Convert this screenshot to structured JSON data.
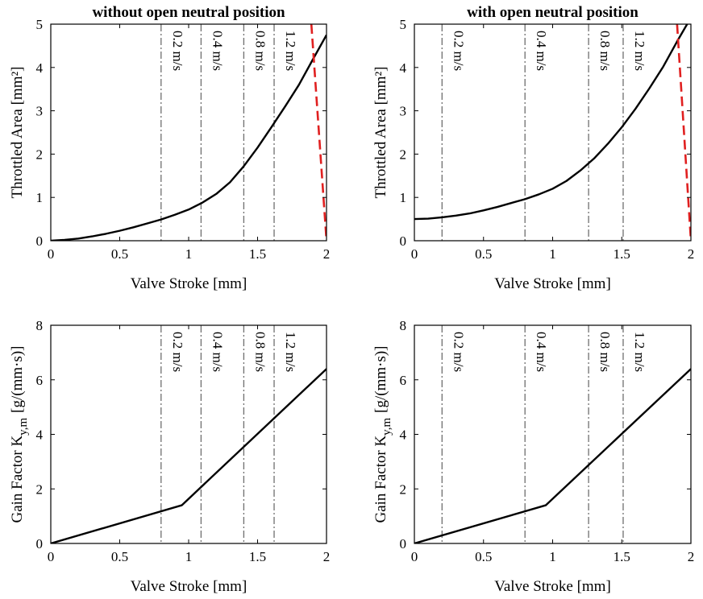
{
  "figure": {
    "colors": {
      "curve": "#000000",
      "refline": "#6e6e6e",
      "redline": "#e02020"
    }
  },
  "chart_data": [
    {
      "type": "line",
      "title": "without open neutral position",
      "xlabel": "Valve Stroke  [mm]",
      "ylabel": "Throttled Area [mm²]",
      "xlim": [
        0,
        2
      ],
      "ylim": [
        0,
        5
      ],
      "xticks": [
        0,
        0.5,
        1,
        1.5,
        2
      ],
      "xtick_labels": [
        "0",
        "0.5",
        "1",
        "1.5",
        "2"
      ],
      "yticks": [
        0,
        1,
        2,
        3,
        4,
        5
      ],
      "ytick_labels": [
        "0",
        "1",
        "2",
        "3",
        "4",
        "5"
      ],
      "series": [
        {
          "name": "Throttled area",
          "style": "solid-black",
          "x": [
            0,
            0.1,
            0.2,
            0.3,
            0.4,
            0.5,
            0.6,
            0.7,
            0.8,
            0.9,
            1.0,
            1.1,
            1.2,
            1.3,
            1.4,
            1.5,
            1.6,
            1.7,
            1.8,
            1.9,
            2.0
          ],
          "y": [
            0,
            0.02,
            0.05,
            0.1,
            0.16,
            0.23,
            0.31,
            0.4,
            0.49,
            0.6,
            0.72,
            0.88,
            1.08,
            1.35,
            1.72,
            2.15,
            2.62,
            3.1,
            3.6,
            4.18,
            4.75
          ]
        },
        {
          "name": "Dashed red line",
          "style": "dashed-red",
          "x": [
            1.89,
            2.0
          ],
          "y": [
            5.0,
            0.0
          ]
        }
      ],
      "vlines": [
        {
          "x": 0.8,
          "label": "0.2 m/s"
        },
        {
          "x": 1.09,
          "label": "0.4 m/s"
        },
        {
          "x": 1.4,
          "label": "0.8 m/s"
        },
        {
          "x": 1.62,
          "label": "1.2 m/s"
        }
      ]
    },
    {
      "type": "line",
      "title": "with open neutral position",
      "xlabel": "Valve Stroke  [mm]",
      "ylabel": "Throttled Area [mm²]",
      "xlim": [
        0,
        2
      ],
      "ylim": [
        0,
        5
      ],
      "xticks": [
        0,
        0.5,
        1,
        1.5,
        2
      ],
      "xtick_labels": [
        "0",
        "0.5",
        "1",
        "1.5",
        "2"
      ],
      "yticks": [
        0,
        1,
        2,
        3,
        4,
        5
      ],
      "ytick_labels": [
        "0",
        "1",
        "2",
        "3",
        "4",
        "5"
      ],
      "series": [
        {
          "name": "Throttled area",
          "style": "solid-black",
          "x": [
            0,
            0.1,
            0.2,
            0.3,
            0.4,
            0.5,
            0.6,
            0.7,
            0.8,
            0.9,
            1.0,
            1.1,
            1.2,
            1.3,
            1.4,
            1.5,
            1.6,
            1.7,
            1.8,
            1.9,
            2.0
          ],
          "y": [
            0.5,
            0.51,
            0.54,
            0.58,
            0.63,
            0.7,
            0.78,
            0.87,
            0.96,
            1.07,
            1.2,
            1.38,
            1.62,
            1.9,
            2.24,
            2.62,
            3.05,
            3.52,
            4.02,
            4.6,
            5.15
          ]
        },
        {
          "name": "Dashed red line",
          "style": "dashed-red",
          "x": [
            1.9,
            2.0
          ],
          "y": [
            5.0,
            0.0
          ]
        }
      ],
      "vlines": [
        {
          "x": 0.2,
          "label": "0.2 m/s"
        },
        {
          "x": 0.8,
          "label": "0.4 m/s"
        },
        {
          "x": 1.26,
          "label": "0.8 m/s"
        },
        {
          "x": 1.51,
          "label": "1.2 m/s"
        }
      ]
    },
    {
      "type": "line",
      "title": "",
      "xlabel": "Valve Stroke [mm]",
      "ylabel": "Gain Factor K",
      "ylabel_sub": "y,m",
      "ylabel_unit": "[g/(mm·s)]",
      "xlim": [
        0,
        2
      ],
      "ylim": [
        0,
        8
      ],
      "xticks": [
        0,
        0.5,
        1,
        1.5,
        2
      ],
      "xtick_labels": [
        "0",
        "0.5",
        "1",
        "1.5",
        "2"
      ],
      "yticks": [
        0,
        2,
        4,
        6,
        8
      ],
      "ytick_labels": [
        "0",
        "2",
        "4",
        "6",
        "8"
      ],
      "series": [
        {
          "name": "Gain factor",
          "style": "solid-black",
          "x": [
            0,
            0.95,
            2.0
          ],
          "y": [
            0,
            1.4,
            6.4
          ]
        }
      ],
      "vlines": [
        {
          "x": 0.8,
          "label": "0.2 m/s"
        },
        {
          "x": 1.09,
          "label": "0.4 m/s"
        },
        {
          "x": 1.4,
          "label": "0.8 m/s"
        },
        {
          "x": 1.62,
          "label": "1.2 m/s"
        }
      ]
    },
    {
      "type": "line",
      "title": "",
      "xlabel": "Valve Stroke [mm]",
      "ylabel": "Gain Factor K",
      "ylabel_sub": "y,m",
      "ylabel_unit": "[g/(mm·s)]",
      "xlim": [
        0,
        2
      ],
      "ylim": [
        0,
        8
      ],
      "xticks": [
        0,
        0.5,
        1,
        1.5,
        2
      ],
      "xtick_labels": [
        "0",
        "0.5",
        "1",
        "1.5",
        "2"
      ],
      "yticks": [
        0,
        2,
        4,
        6,
        8
      ],
      "ytick_labels": [
        "0",
        "2",
        "4",
        "6",
        "8"
      ],
      "series": [
        {
          "name": "Gain factor",
          "style": "solid-black",
          "x": [
            0,
            0.95,
            2.0
          ],
          "y": [
            0,
            1.4,
            6.4
          ]
        }
      ],
      "vlines": [
        {
          "x": 0.2,
          "label": "0.2 m/s"
        },
        {
          "x": 0.8,
          "label": "0.4 m/s"
        },
        {
          "x": 1.26,
          "label": "0.8 m/s"
        },
        {
          "x": 1.51,
          "label": "1.2 m/s"
        }
      ]
    }
  ]
}
